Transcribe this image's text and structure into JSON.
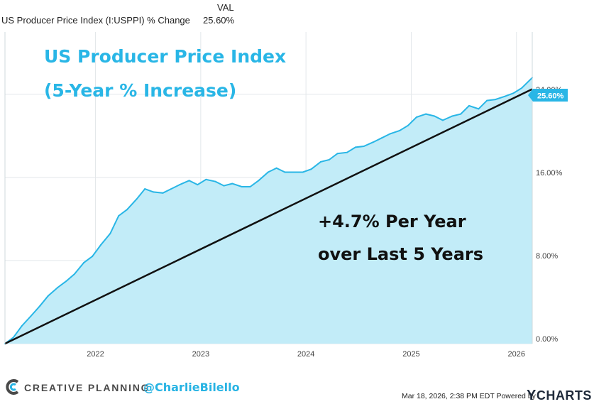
{
  "legend": {
    "column_header": "VAL",
    "series_name": "US Producer Price Index (I:USPPI) % Change",
    "series_value": "25.60%"
  },
  "colors": {
    "line": "#29b6e6",
    "fill": "#c2ecf8",
    "trend": "#111111",
    "title": "#29b6e6",
    "badge": "#29b6e6"
  },
  "chart_data": {
    "type": "area",
    "title": "US Producer Price Index",
    "subtitle": "(5-Year % Increase)",
    "annotation_line1": "+4.7% Per Year",
    "annotation_line2": "over Last 5 Years",
    "last_value_label": "25.60%",
    "ylim": [
      0,
      30
    ],
    "yticks": [
      0,
      8,
      16,
      24
    ],
    "ytick_labels": [
      "0.00%",
      "8.00%",
      "16.00%",
      "24.00%"
    ],
    "xticks": [
      2022,
      2023,
      2024,
      2025,
      2026
    ],
    "xtick_labels": [
      "2022",
      "2023",
      "2024",
      "2025",
      "2026"
    ],
    "xlim": [
      2021.14,
      2026.15
    ],
    "grid": true,
    "series": [
      {
        "x": [
          2021.14,
          2021.22,
          2021.3,
          2021.39,
          2021.47,
          2021.55,
          2021.64,
          2021.72,
          2021.8,
          2021.89,
          2021.97,
          2022.05,
          2022.14,
          2022.22,
          2022.3,
          2022.39,
          2022.47,
          2022.55,
          2022.64,
          2022.72,
          2022.8,
          2022.89,
          2022.97,
          2023.05,
          2023.14,
          2023.22,
          2023.3,
          2023.39,
          2023.47,
          2023.55,
          2023.64,
          2023.72,
          2023.8,
          2023.89,
          2023.97,
          2024.05,
          2024.14,
          2024.22,
          2024.3,
          2024.39,
          2024.47,
          2024.55,
          2024.64,
          2024.72,
          2024.8,
          2024.89,
          2024.97,
          2025.05,
          2025.14,
          2025.22,
          2025.3,
          2025.39,
          2025.47,
          2025.55,
          2025.64,
          2025.72,
          2025.8,
          2025.89,
          2025.97,
          2026.05,
          2026.15
        ],
        "y": [
          0.0,
          0.6,
          1.7,
          2.7,
          3.6,
          4.6,
          5.4,
          6.0,
          6.7,
          7.8,
          8.4,
          9.5,
          10.6,
          12.3,
          12.9,
          13.9,
          14.9,
          14.6,
          14.5,
          14.9,
          15.3,
          15.7,
          15.3,
          15.8,
          15.6,
          15.2,
          15.4,
          15.1,
          15.1,
          15.7,
          16.5,
          16.9,
          16.5,
          16.5,
          16.5,
          16.8,
          17.5,
          17.7,
          18.3,
          18.4,
          18.9,
          19.0,
          19.4,
          19.8,
          20.2,
          20.5,
          21.0,
          21.8,
          22.1,
          21.9,
          21.5,
          21.9,
          22.1,
          22.9,
          22.6,
          23.4,
          23.5,
          23.8,
          24.1,
          24.6,
          25.6
        ]
      }
    ],
    "trendline": {
      "x": [
        2021.14,
        2026.15
      ],
      "y": [
        0.0,
        24.5
      ]
    }
  },
  "footer": {
    "brand": "CREATIVE PLANNING",
    "handle": "@CharlieBilello",
    "timestamp": "Mar 18, 2026, 2:38 PM EDT Powered by",
    "ycharts_y": "Y",
    "ycharts_rest": "CHARTS"
  }
}
